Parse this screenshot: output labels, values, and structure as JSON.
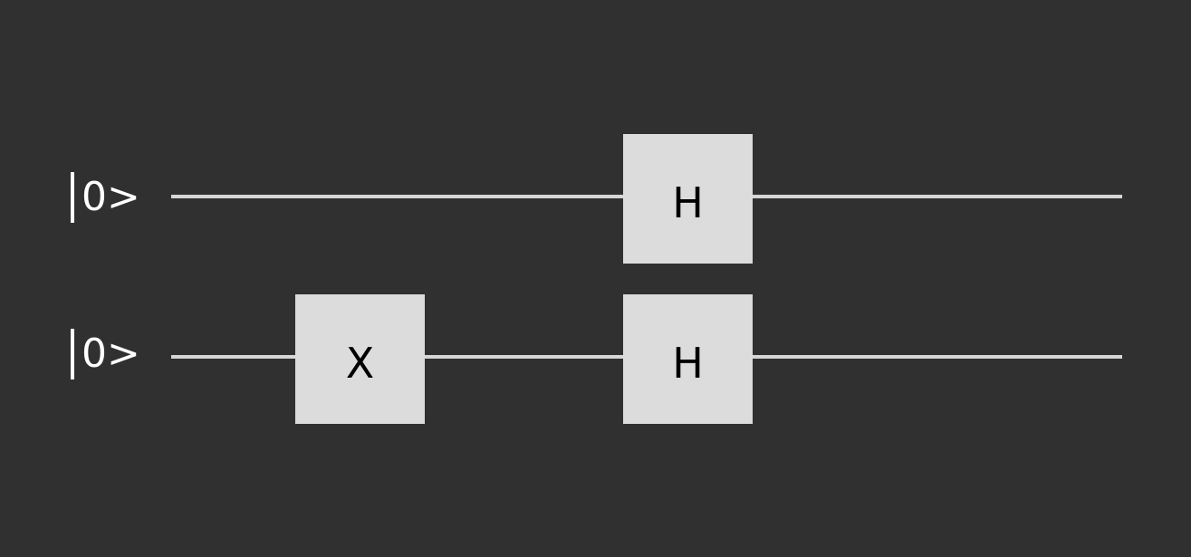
{
  "circuit": {
    "qubits": [
      {
        "label": "0>"
      },
      {
        "label": "0>"
      }
    ],
    "gates": [
      {
        "qubit": 0,
        "step": 2,
        "label": "H"
      },
      {
        "qubit": 1,
        "step": 1,
        "label": "X"
      },
      {
        "qubit": 1,
        "step": 2,
        "label": "H"
      }
    ]
  },
  "colors": {
    "background": "#303030",
    "wire": "#d6d6d6",
    "gate_fill": "#dcdcdc",
    "gate_text": "#000000",
    "label_text": "#ffffff"
  }
}
